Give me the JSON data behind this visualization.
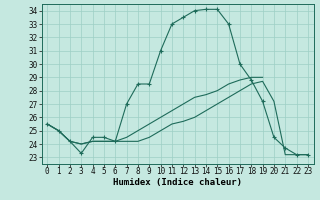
{
  "xlabel": "Humidex (Indice chaleur)",
  "bg_color": "#c5e8e0",
  "grid_color": "#9ecfc5",
  "line_color": "#1e6b5a",
  "xlim": [
    -0.5,
    23.5
  ],
  "ylim": [
    22.5,
    34.5
  ],
  "xticks": [
    0,
    1,
    2,
    3,
    4,
    5,
    6,
    7,
    8,
    9,
    10,
    11,
    12,
    13,
    14,
    15,
    16,
    17,
    18,
    19,
    20,
    21,
    22,
    23
  ],
  "yticks": [
    23,
    24,
    25,
    26,
    27,
    28,
    29,
    30,
    31,
    32,
    33,
    34
  ],
  "hours": [
    0,
    1,
    2,
    3,
    4,
    5,
    6,
    7,
    8,
    9,
    10,
    11,
    12,
    13,
    14,
    15,
    16,
    17,
    18,
    19,
    20,
    21,
    22,
    23
  ],
  "main_curve": [
    25.5,
    25.0,
    24.2,
    23.3,
    24.5,
    24.5,
    24.2,
    27.0,
    28.5,
    28.5,
    31.0,
    33.0,
    33.5,
    34.0,
    34.1,
    34.1,
    33.0,
    30.0,
    28.8,
    27.2,
    24.5,
    23.7,
    23.2,
    23.2
  ],
  "line2": [
    25.5,
    25.0,
    24.2,
    24.0,
    24.2,
    24.2,
    24.2,
    24.2,
    24.2,
    24.5,
    25.0,
    25.5,
    25.7,
    26.0,
    26.5,
    27.0,
    27.5,
    28.0,
    28.5,
    28.7,
    27.2,
    23.2,
    23.2,
    23.2
  ],
  "line3": [
    25.5,
    25.0,
    24.2,
    24.0,
    24.2,
    24.2,
    24.2,
    24.5,
    25.0,
    25.5,
    26.0,
    26.5,
    27.0,
    27.5,
    27.7,
    28.0,
    28.5,
    28.8,
    29.0,
    29.0,
    null,
    null,
    null,
    null
  ]
}
